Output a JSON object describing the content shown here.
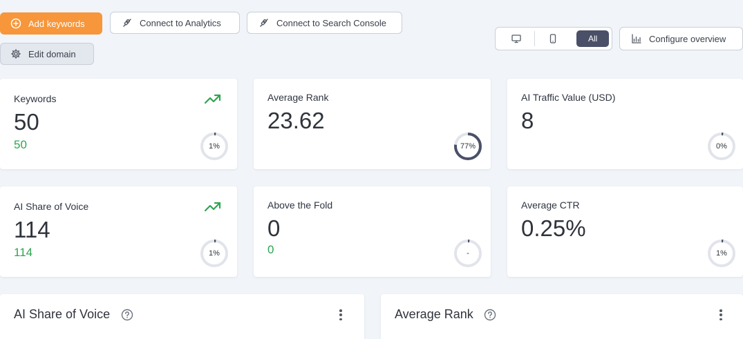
{
  "toolbar": {
    "add_keywords": "Add keywords",
    "connect_analytics": "Connect to Analytics",
    "connect_search_console": "Connect to Search Console",
    "edit_domain": "Edit domain",
    "device_all": "All",
    "configure_overview": "Configure overview"
  },
  "metrics": [
    {
      "label": "Keywords",
      "value": "50",
      "change": "50",
      "ring_text": "1%",
      "ring_fraction": 0.01,
      "trend": "up"
    },
    {
      "label": "Average Rank",
      "value": "23.62",
      "change": "",
      "ring_text": "77%",
      "ring_fraction": 0.77,
      "trend": ""
    },
    {
      "label": "AI Traffic Value (USD)",
      "value": "8",
      "change": "",
      "ring_text": "0%",
      "ring_fraction": 0.0,
      "trend": ""
    },
    {
      "label": "AI Share of Voice",
      "value": "114",
      "change": "114",
      "ring_text": "1%",
      "ring_fraction": 0.01,
      "trend": "up"
    },
    {
      "label": "Above the Fold",
      "value": "0",
      "change": "0",
      "ring_text": "-",
      "ring_fraction": 0.0,
      "trend": ""
    },
    {
      "label": "Average CTR",
      "value": "0.25%",
      "change": "",
      "ring_text": "1%",
      "ring_fraction": 0.01,
      "trend": ""
    }
  ],
  "panels": [
    {
      "title": "AI Share of Voice"
    },
    {
      "title": "Average Rank"
    }
  ],
  "colors": {
    "primary": "#f7963a",
    "positive": "#2ea54f",
    "ring_track": "#e1e4ea",
    "ring_fill": "#4a5068"
  }
}
